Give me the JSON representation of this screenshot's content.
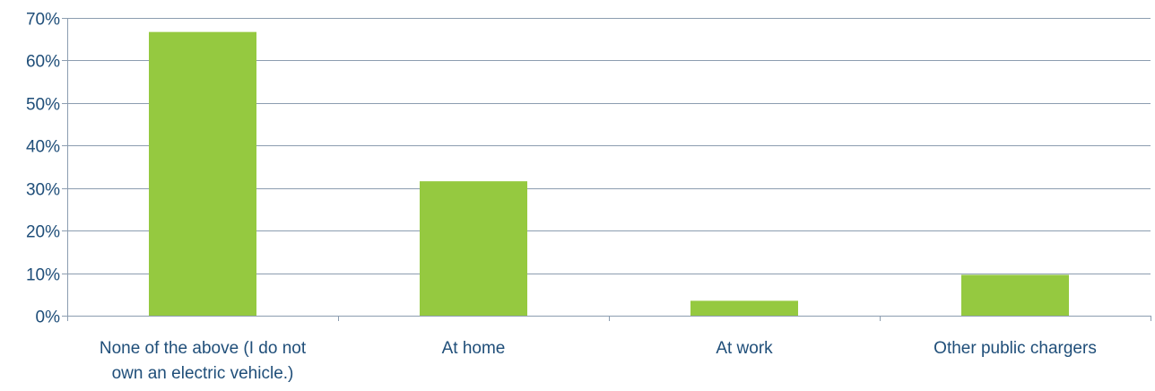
{
  "chart_data": {
    "type": "bar",
    "categories": [
      [
        "None of the above (I do not",
        "own an electric vehicle.)"
      ],
      [
        "At home"
      ],
      [
        "At work"
      ],
      [
        "Other public chargers"
      ]
    ],
    "values": [
      66.7,
      31.6,
      3.5,
      9.6
    ],
    "ylim": [
      0,
      70
    ],
    "yticks": [
      0,
      10,
      20,
      30,
      40,
      50,
      60,
      70
    ],
    "ytick_labels": [
      "0%",
      "10%",
      "20%",
      "30%",
      "40%",
      "50%",
      "60%",
      "70%"
    ],
    "grid": true,
    "legend": "none",
    "bar_color": "#95c940",
    "grid_color": "#8c9db0",
    "text_color": "#1f4e79"
  }
}
